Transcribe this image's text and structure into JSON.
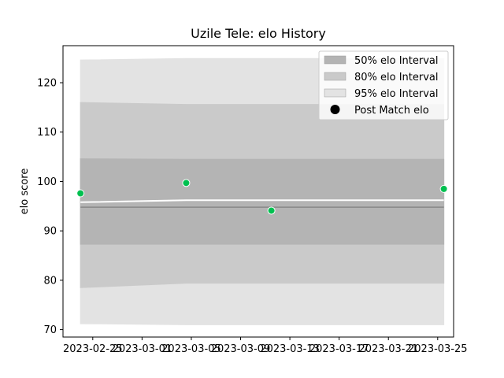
{
  "chart_data": {
    "type": "area",
    "title": "Uzile Tele: elo History",
    "ylabel": "elo score",
    "xlabel": "",
    "xlim": [
      "2023-02-22T14:00",
      "2023-03-26T07:00"
    ],
    "ylim": [
      68.5,
      127.5
    ],
    "x_ticks": [
      "2023-02-25",
      "2023-03-01",
      "2023-03-05",
      "2023-03-09",
      "2023-03-13",
      "2023-03-17",
      "2023-03-21",
      "2023-03-25"
    ],
    "y_ticks": [
      70,
      80,
      90,
      100,
      110,
      120
    ],
    "grid": false,
    "legend": {
      "placement": "top-right",
      "entries": [
        "50% elo Interval",
        "80% elo Interval",
        "95% elo Interval",
        "Post Match elo"
      ]
    },
    "x": [
      "2023-02-24T00:00",
      "2023-03-04T14:00",
      "2023-03-11T12:00",
      "2023-03-25T12:00"
    ],
    "bands": [
      {
        "name": "95% elo Interval",
        "color": "#e3e3e3",
        "lower": [
          71.2,
          71.0,
          71.0,
          71.0
        ],
        "upper": [
          124.6,
          124.9,
          124.9,
          124.9
        ]
      },
      {
        "name": "80% elo Interval",
        "color": "#cacaca",
        "lower": [
          78.5,
          79.4,
          79.4,
          79.4
        ],
        "upper": [
          116.0,
          115.6,
          115.6,
          115.6
        ]
      },
      {
        "name": "50% elo Interval",
        "color": "#b4b4b4",
        "lower": [
          87.3,
          87.3,
          87.3,
          87.3
        ],
        "upper": [
          104.6,
          104.5,
          104.5,
          104.5
        ]
      }
    ],
    "mean_line": {
      "color": "#ffffff",
      "values": [
        95.8,
        96.2,
        96.2,
        96.2
      ]
    },
    "baseline": {
      "color": "#888888",
      "value": 94.8
    },
    "points": {
      "name": "Post Match elo",
      "color": "#00c050",
      "values": [
        97.6,
        99.7,
        94.1,
        98.5
      ]
    }
  }
}
